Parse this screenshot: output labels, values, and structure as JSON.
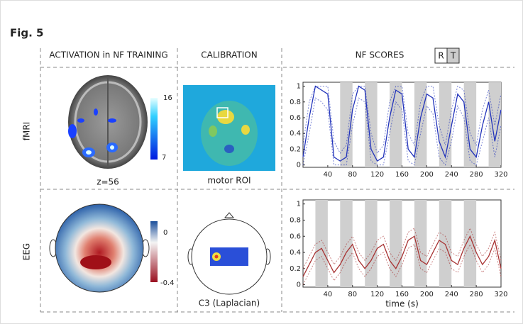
{
  "figure_label": "Fig. 5",
  "columns": [
    "ACTIVATION in NF TRAINING",
    "CALIBRATION",
    "NF SCORES"
  ],
  "toggle": [
    "R",
    "T"
  ],
  "rows": [
    "fMRI",
    "EEG"
  ],
  "panels": {
    "fmri_activation": {
      "caption": "z=56",
      "colorbar": [
        "16",
        "7"
      ]
    },
    "fmri_calibration": {
      "caption": "motor ROI"
    },
    "eeg_activation": {
      "colorbar": [
        "0",
        "-0.4"
      ]
    },
    "eeg_calibration": {
      "caption": "C3 (Laplacian)"
    }
  },
  "charts": [
    {
      "type": "line",
      "color": "#2233bb",
      "xlim": [
        0,
        320
      ],
      "ylim": [
        -0.03,
        1.05
      ],
      "xticks": [
        40,
        80,
        120,
        160,
        200,
        240,
        280,
        320
      ],
      "yticks": [
        0,
        0.2,
        0.4,
        0.6,
        0.8,
        1
      ],
      "blocks": [
        [
          60,
          80
        ],
        [
          100,
          120
        ],
        [
          140,
          160
        ],
        [
          180,
          200
        ],
        [
          220,
          240
        ],
        [
          260,
          280
        ],
        [
          300,
          320
        ]
      ],
      "x": [
        0,
        10,
        20,
        30,
        40,
        50,
        60,
        70,
        80,
        90,
        100,
        110,
        120,
        130,
        140,
        150,
        160,
        170,
        180,
        190,
        200,
        210,
        220,
        230,
        240,
        250,
        260,
        270,
        280,
        290,
        300,
        310,
        320
      ],
      "values": [
        0.1,
        0.6,
        1,
        0.95,
        0.9,
        0.1,
        0.05,
        0.1,
        0.7,
        1,
        0.95,
        0.2,
        0.05,
        0.1,
        0.6,
        0.95,
        0.9,
        0.2,
        0.1,
        0.6,
        0.9,
        0.85,
        0.3,
        0.1,
        0.5,
        0.9,
        0.8,
        0.2,
        0.1,
        0.5,
        0.8,
        0.3,
        0.7
      ],
      "upper": [
        0.25,
        0.8,
        1,
        1,
        1,
        0.3,
        0.15,
        0.25,
        0.9,
        1,
        1,
        0.4,
        0.15,
        0.25,
        0.8,
        1,
        1,
        0.4,
        0.25,
        0.8,
        1,
        1,
        0.5,
        0.25,
        0.7,
        1,
        0.95,
        0.4,
        0.25,
        0.7,
        0.95,
        0.5,
        0.9
      ],
      "lower": [
        0,
        0.4,
        0.85,
        0.8,
        0.7,
        0,
        0,
        0,
        0.5,
        0.85,
        0.8,
        0.05,
        0,
        0,
        0.4,
        0.8,
        0.7,
        0.05,
        0,
        0.4,
        0.75,
        0.65,
        0.1,
        0,
        0.3,
        0.75,
        0.6,
        0.05,
        0,
        0.3,
        0.6,
        0.1,
        0.5
      ]
    },
    {
      "type": "line",
      "color": "#a83232",
      "xlim": [
        0,
        320
      ],
      "ylim": [
        -0.03,
        1.05
      ],
      "xticks": [
        40,
        80,
        120,
        160,
        200,
        240,
        280,
        320
      ],
      "yticks": [
        0,
        0.2,
        0.4,
        0.6,
        0.8,
        1
      ],
      "xlabel": "time (s)",
      "blocks": [
        [
          20,
          40
        ],
        [
          60,
          80
        ],
        [
          100,
          120
        ],
        [
          140,
          160
        ],
        [
          180,
          200
        ],
        [
          220,
          240
        ],
        [
          260,
          280
        ]
      ],
      "x": [
        0,
        10,
        20,
        30,
        40,
        50,
        60,
        70,
        80,
        90,
        100,
        110,
        120,
        130,
        140,
        150,
        160,
        170,
        180,
        190,
        200,
        210,
        220,
        230,
        240,
        250,
        260,
        270,
        280,
        290,
        300,
        310,
        320
      ],
      "values": [
        0.1,
        0.25,
        0.4,
        0.45,
        0.3,
        0.15,
        0.25,
        0.4,
        0.5,
        0.3,
        0.2,
        0.3,
        0.45,
        0.5,
        0.3,
        0.2,
        0.35,
        0.55,
        0.6,
        0.3,
        0.25,
        0.4,
        0.55,
        0.5,
        0.3,
        0.25,
        0.45,
        0.6,
        0.4,
        0.25,
        0.35,
        0.55,
        0.2
      ],
      "upper": [
        0.2,
        0.35,
        0.5,
        0.55,
        0.4,
        0.25,
        0.35,
        0.5,
        0.6,
        0.4,
        0.3,
        0.4,
        0.55,
        0.6,
        0.4,
        0.3,
        0.45,
        0.65,
        0.7,
        0.4,
        0.35,
        0.5,
        0.65,
        0.6,
        0.4,
        0.35,
        0.55,
        0.7,
        0.5,
        0.35,
        0.45,
        0.65,
        0.3
      ],
      "lower": [
        0,
        0.15,
        0.3,
        0.35,
        0.2,
        0.05,
        0.15,
        0.3,
        0.4,
        0.2,
        0.1,
        0.2,
        0.35,
        0.4,
        0.2,
        0.1,
        0.25,
        0.45,
        0.5,
        0.2,
        0.15,
        0.3,
        0.45,
        0.4,
        0.2,
        0.15,
        0.35,
        0.5,
        0.3,
        0.15,
        0.25,
        0.45,
        0.1
      ]
    }
  ]
}
